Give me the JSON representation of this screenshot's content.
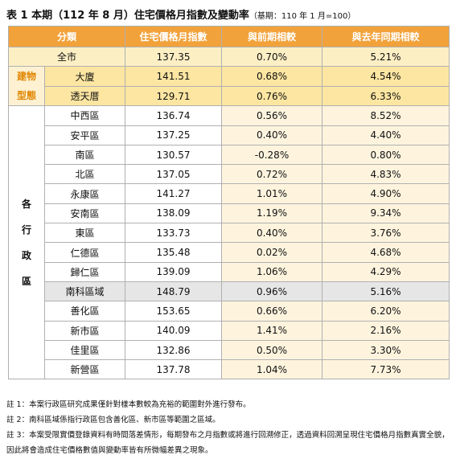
{
  "title": "表 1 本期（112 年 8 月）住宅價格月指數及變動率",
  "title_note": "（基期：110 年 1 月=100）",
  "table": {
    "header": [
      "分類",
      "住宅價格月指數",
      "與前期相較",
      "與去年同期相較"
    ],
    "total": [
      "全市",
      "137.35",
      "0.70%",
      "5.21%"
    ],
    "groups": [
      {
        "label": "建物型態",
        "rows": [
          [
            "大廈",
            "141.51",
            "0.68%",
            "4.54%"
          ],
          [
            "透天厝",
            "129.71",
            "0.76%",
            "6.33%"
          ]
        ]
      },
      {
        "label": "各行政區",
        "rows": [
          [
            "中西區",
            "136.74",
            "0.56%",
            "8.52%"
          ],
          [
            "安平區",
            "137.25",
            "0.40%",
            "4.40%"
          ],
          [
            "南區",
            "130.57",
            "-0.28%",
            "0.80%"
          ],
          [
            "北區",
            "137.05",
            "0.72%",
            "4.83%"
          ],
          [
            "永康區",
            "141.27",
            "1.01%",
            "4.90%"
          ],
          [
            "安南區",
            "138.09",
            "1.19%",
            "9.34%"
          ],
          [
            "東區",
            "133.73",
            "0.40%",
            "3.76%"
          ],
          [
            "仁德區",
            "135.48",
            "0.02%",
            "4.68%"
          ],
          [
            "歸仁區",
            "139.09",
            "1.06%",
            "4.29%"
          ],
          [
            "南科區域",
            "148.79",
            "0.96%",
            "5.16%"
          ],
          [
            "善化區",
            "153.65",
            "0.66%",
            "6.20%"
          ],
          [
            "新市區",
            "140.09",
            "1.41%",
            "2.16%"
          ],
          [
            "佳里區",
            "132.86",
            "0.50%",
            "3.30%"
          ],
          [
            "新營區",
            "137.78",
            "1.04%",
            "7.73%"
          ]
        ]
      }
    ]
  },
  "notes": [
    "註 1：本案行政區研究成果僅針對樣本數較為充裕的範圍對外進行發布。",
    "註 2：南科區域係指行政區包含善化區、新市區等範圍之區域。",
    "註 3：本案受限實價登錄資料有時間落差情形，每期發布之月指數或將進行回溯修正，透過資料回溯呈現住宅價格月指數真實全貌，因此將會造成住宅價格數值與變動率皆有所微幅差異之現象。"
  ]
}
